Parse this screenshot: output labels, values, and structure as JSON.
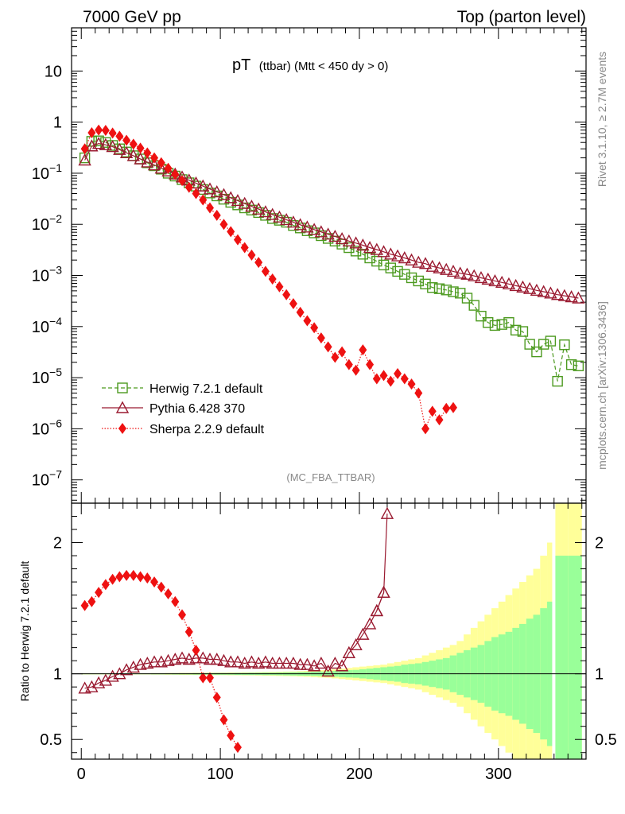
{
  "header": {
    "left": "7000 GeV pp",
    "right": "Top (parton level)"
  },
  "side_labels": {
    "rivet": "Rivet 3.1.10, ≥ 2.7M events",
    "mcplots": "mcplots.cern.ch [arXiv:1306.3436]"
  },
  "colors": {
    "herwig": "#4c9a1f",
    "pythia": "#9a1a30",
    "sherpa": "#ee1111",
    "band_yellow": "#ffff99",
    "band_green": "#99ff99"
  },
  "chart_data": {
    "type": "line",
    "title": "pT",
    "title_suffix": "(ttbar) (Mtt < 450 dy > 0)",
    "watermark": "(MC_FBA_TTBAR)",
    "main_panel": {
      "yscale": "log",
      "ylim": [
        3.5e-08,
        70
      ],
      "ytick_values": [
        1e-07,
        1e-06,
        1e-05,
        0.0001,
        0.001,
        0.01,
        0.1,
        1,
        10
      ],
      "ytick_labels": [
        {
          "base": "10",
          "exp": "−7"
        },
        {
          "base": "10",
          "exp": "−6"
        },
        {
          "base": "10",
          "exp": "−5"
        },
        {
          "base": "10",
          "exp": "−4"
        },
        {
          "base": "10",
          "exp": "−3"
        },
        {
          "base": "10",
          "exp": "−2"
        },
        {
          "base": "10",
          "exp": "−1"
        },
        {
          "base": "1",
          "exp": ""
        },
        {
          "base": "10",
          "exp": ""
        }
      ]
    },
    "ratio_panel": {
      "ylabel": "Ratio to Herwig 7.2.1 default",
      "ylim": [
        0.35,
        2.3
      ],
      "yticks": [
        0.5,
        1,
        2
      ],
      "ytick_labels": [
        "0.5",
        "1",
        "2"
      ]
    },
    "xlim": [
      -7,
      363
    ],
    "xticks": [
      0,
      100,
      200,
      300
    ],
    "xtick_labels": [
      "0",
      "100",
      "200",
      "300"
    ],
    "legend": [
      {
        "label": "Herwig 7.2.1 default",
        "key": "herwig"
      },
      {
        "label": "Pythia 6.428 370",
        "key": "pythia"
      },
      {
        "label": "Sherpa 2.2.9 default",
        "key": "sherpa"
      }
    ],
    "herwig": {
      "x": [
        2.5,
        7.5,
        12.5,
        17.5,
        22.5,
        27.5,
        32.5,
        37.5,
        42.5,
        47.5,
        52.5,
        57.5,
        62.5,
        67.5,
        72.5,
        77.5,
        82.5,
        87.5,
        92.5,
        97.5,
        102.5,
        107.5,
        112.5,
        117.5,
        122.5,
        127.5,
        132.5,
        137.5,
        142.5,
        147.5,
        152.5,
        157.5,
        162.5,
        167.5,
        172.5,
        177.5,
        182.5,
        187.5,
        192.5,
        197.5,
        202.5,
        207.5,
        212.5,
        217.5,
        222.5,
        227.5,
        232.5,
        237.5,
        242.5,
        247.5,
        252.5,
        257.5,
        262.5,
        267.5,
        272.5,
        277.5,
        282.5,
        287.5,
        292.5,
        297.5,
        302.5,
        307.5,
        312.5,
        317.5,
        322.5,
        327.5,
        332.5,
        337.5,
        342.5,
        347.5,
        352.5,
        357.5
      ],
      "y": [
        0.2,
        0.42,
        0.43,
        0.4,
        0.35,
        0.3,
        0.26,
        0.22,
        0.19,
        0.16,
        0.14,
        0.12,
        0.1,
        0.088,
        0.075,
        0.065,
        0.056,
        0.048,
        0.041,
        0.036,
        0.031,
        0.027,
        0.024,
        0.021,
        0.019,
        0.017,
        0.015,
        0.013,
        0.012,
        0.011,
        0.0095,
        0.0085,
        0.0075,
        0.0068,
        0.006,
        0.0053,
        0.0047,
        0.0041,
        0.0035,
        0.003,
        0.0026,
        0.0022,
        0.0019,
        0.0016,
        0.0014,
        0.0012,
        0.00105,
        0.0009,
        0.00078,
        0.00068,
        0.00058,
        0.00055,
        0.00052,
        0.00048,
        0.00045,
        0.00036,
        0.00026,
        0.00016,
        0.00012,
        0.000105,
        0.00011,
        0.00012,
        8.5e-05,
        8e-05,
        4.5e-05,
        3.2e-05,
        4.5e-05,
        5.2e-05,
        8.5e-06,
        4.4e-05,
        1.8e-05,
        1.7e-05
      ]
    },
    "pythia": {
      "x": [
        2.5,
        7.5,
        12.5,
        17.5,
        22.5,
        27.5,
        32.5,
        37.5,
        42.5,
        47.5,
        52.5,
        57.5,
        62.5,
        67.5,
        72.5,
        77.5,
        82.5,
        87.5,
        92.5,
        97.5,
        102.5,
        107.5,
        112.5,
        117.5,
        122.5,
        127.5,
        132.5,
        137.5,
        142.5,
        147.5,
        152.5,
        157.5,
        162.5,
        167.5,
        172.5,
        177.5,
        182.5,
        187.5,
        192.5,
        197.5,
        202.5,
        207.5,
        212.5,
        217.5,
        222.5,
        227.5,
        232.5,
        237.5,
        242.5,
        247.5,
        252.5,
        257.5,
        262.5,
        267.5,
        272.5,
        277.5,
        282.5,
        287.5,
        292.5,
        297.5,
        302.5,
        307.5,
        312.5,
        317.5,
        322.5,
        327.5,
        332.5,
        337.5,
        342.5,
        347.5,
        352.5,
        357.5
      ],
      "y": [
        0.18,
        0.34,
        0.38,
        0.36,
        0.33,
        0.29,
        0.25,
        0.22,
        0.19,
        0.165,
        0.145,
        0.125,
        0.11,
        0.096,
        0.084,
        0.073,
        0.064,
        0.056,
        0.049,
        0.043,
        0.038,
        0.033,
        0.029,
        0.0255,
        0.0225,
        0.0198,
        0.0175,
        0.0155,
        0.0138,
        0.0123,
        0.011,
        0.0098,
        0.0088,
        0.0079,
        0.0071,
        0.0064,
        0.0058,
        0.0052,
        0.0047,
        0.0043,
        0.0039,
        0.0035,
        0.0032,
        0.0029,
        0.0026,
        0.0024,
        0.0022,
        0.002,
        0.0018,
        0.0017,
        0.0015,
        0.0014,
        0.0013,
        0.0012,
        0.0011,
        0.00105,
        0.00098,
        0.0009,
        0.00084,
        0.00078,
        0.00073,
        0.00068,
        0.00063,
        0.00059,
        0.00055,
        0.00051,
        0.00048,
        0.00045,
        0.00042,
        0.0004,
        0.00038,
        0.00036
      ]
    },
    "sherpa": {
      "x": [
        2.5,
        7.5,
        12.5,
        17.5,
        22.5,
        27.5,
        32.5,
        37.5,
        42.5,
        47.5,
        52.5,
        57.5,
        62.5,
        67.5,
        72.5,
        77.5,
        82.5,
        87.5,
        92.5,
        97.5,
        102.5,
        107.5,
        112.5,
        117.5,
        122.5,
        127.5,
        132.5,
        137.5,
        142.5,
        147.5,
        152.5,
        157.5,
        162.5,
        167.5,
        172.5,
        177.5,
        182.5,
        187.5,
        192.5,
        197.5,
        202.5,
        207.5,
        212.5,
        217.5,
        222.5,
        227.5,
        232.5,
        237.5,
        242.5,
        247.5,
        252.5,
        257.5,
        262.5,
        267.5
      ],
      "y": [
        0.3,
        0.62,
        0.7,
        0.69,
        0.61,
        0.53,
        0.44,
        0.37,
        0.31,
        0.25,
        0.2,
        0.16,
        0.125,
        0.095,
        0.072,
        0.053,
        0.04,
        0.03,
        0.021,
        0.015,
        0.01,
        0.0072,
        0.005,
        0.0035,
        0.0025,
        0.0018,
        0.0012,
        0.00085,
        0.0006,
        0.00042,
        0.00028,
        0.00019,
        0.00013,
        9.5e-05,
        6e-05,
        4e-05,
        2.5e-05,
        3.2e-05,
        1.8e-05,
        1.4e-05,
        3.5e-05,
        1.8e-05,
        9.5e-06,
        1.1e-05,
        8.5e-06,
        1.2e-05,
        9.5e-06,
        7.5e-06,
        5e-06,
        1e-06,
        2.2e-06,
        1.5e-06,
        2.5e-06,
        2.6e-06
      ]
    },
    "ratio_bands": {
      "x": [
        2.5,
        7.5,
        12.5,
        17.5,
        22.5,
        27.5,
        32.5,
        37.5,
        42.5,
        47.5,
        52.5,
        57.5,
        62.5,
        67.5,
        72.5,
        77.5,
        82.5,
        87.5,
        92.5,
        97.5,
        102.5,
        107.5,
        112.5,
        117.5,
        122.5,
        127.5,
        132.5,
        137.5,
        142.5,
        147.5,
        152.5,
        157.5,
        162.5,
        167.5,
        172.5,
        177.5,
        182.5,
        187.5,
        192.5,
        197.5,
        202.5,
        207.5,
        212.5,
        217.5,
        222.5,
        227.5,
        232.5,
        237.5,
        242.5,
        247.5,
        252.5,
        257.5,
        262.5,
        267.5,
        272.5,
        277.5,
        282.5,
        287.5,
        292.5,
        297.5,
        302.5,
        307.5,
        312.5,
        317.5,
        322.5,
        327.5,
        332.5,
        337.5,
        342.5,
        347.5,
        352.5,
        357.5
      ],
      "yellow_rel": [
        0.005,
        0.005,
        0.005,
        0.005,
        0.005,
        0.005,
        0.005,
        0.005,
        0.005,
        0.005,
        0.006,
        0.006,
        0.007,
        0.007,
        0.008,
        0.008,
        0.009,
        0.009,
        0.01,
        0.01,
        0.01,
        0.011,
        0.011,
        0.012,
        0.012,
        0.013,
        0.014,
        0.015,
        0.016,
        0.017,
        0.018,
        0.02,
        0.022,
        0.025,
        0.028,
        0.03,
        0.035,
        0.04,
        0.045,
        0.05,
        0.055,
        0.06,
        0.065,
        0.07,
        0.08,
        0.09,
        0.1,
        0.11,
        0.12,
        0.14,
        0.16,
        0.18,
        0.2,
        0.22,
        0.25,
        0.3,
        0.35,
        0.4,
        0.45,
        0.5,
        0.55,
        0.6,
        0.65,
        0.7,
        0.75,
        0.8,
        0.9,
        1.0,
        1.5,
        1.5,
        1.5,
        1.5
      ],
      "green_rel": [
        0.003,
        0.003,
        0.003,
        0.003,
        0.003,
        0.003,
        0.003,
        0.003,
        0.003,
        0.003,
        0.004,
        0.004,
        0.004,
        0.005,
        0.005,
        0.005,
        0.006,
        0.006,
        0.006,
        0.007,
        0.007,
        0.007,
        0.008,
        0.008,
        0.009,
        0.009,
        0.01,
        0.01,
        0.011,
        0.012,
        0.013,
        0.014,
        0.015,
        0.016,
        0.018,
        0.02,
        0.022,
        0.025,
        0.028,
        0.03,
        0.035,
        0.04,
        0.045,
        0.05,
        0.055,
        0.06,
        0.07,
        0.075,
        0.08,
        0.09,
        0.1,
        0.11,
        0.12,
        0.14,
        0.16,
        0.18,
        0.2,
        0.22,
        0.25,
        0.28,
        0.3,
        0.32,
        0.35,
        0.38,
        0.42,
        0.45,
        0.5,
        0.55,
        0.9,
        0.9,
        0.9,
        0.9
      ]
    },
    "ratio": {
      "pythia": {
        "x": [
          2.5,
          7.5,
          12.5,
          17.5,
          22.5,
          27.5,
          32.5,
          37.5,
          42.5,
          47.5,
          52.5,
          57.5,
          62.5,
          67.5,
          72.5,
          77.5,
          82.5,
          87.5,
          92.5,
          97.5,
          102.5,
          107.5,
          112.5,
          117.5,
          122.5,
          127.5,
          132.5,
          137.5,
          142.5,
          147.5,
          152.5,
          157.5,
          162.5,
          167.5,
          172.5,
          177.5,
          182.5,
          187.5,
          192.5,
          197.5,
          202.5,
          207.5,
          212.5,
          217.5
        ],
        "y": [
          0.89,
          0.9,
          0.93,
          0.95,
          0.98,
          1.0,
          1.03,
          1.05,
          1.07,
          1.08,
          1.09,
          1.09,
          1.1,
          1.11,
          1.12,
          1.11,
          1.12,
          1.12,
          1.11,
          1.11,
          1.1,
          1.09,
          1.09,
          1.08,
          1.09,
          1.08,
          1.09,
          1.08,
          1.08,
          1.08,
          1.08,
          1.07,
          1.07,
          1.06,
          1.08,
          1.02,
          1.08,
          1.06,
          1.16,
          1.22,
          1.3,
          1.38,
          1.48,
          1.62
        ]
      },
      "pythia_extra": {
        "x": [
          212.5,
          217.5,
          220.0
        ],
        "y": [
          1.48,
          1.62,
          2.22
        ]
      },
      "sherpa": {
        "x": [
          2.5,
          7.5,
          12.5,
          17.5,
          22.5,
          27.5,
          32.5,
          37.5,
          42.5,
          47.5,
          52.5,
          57.5,
          62.5,
          67.5,
          72.5,
          77.5,
          82.5,
          87.5,
          92.5,
          97.5,
          102.5,
          107.5,
          112.5
        ],
        "y": [
          1.52,
          1.55,
          1.62,
          1.68,
          1.72,
          1.74,
          1.75,
          1.75,
          1.74,
          1.73,
          1.7,
          1.66,
          1.61,
          1.55,
          1.45,
          1.32,
          1.18,
          0.97,
          0.97,
          0.82,
          0.65,
          0.53,
          0.44
        ]
      }
    }
  }
}
